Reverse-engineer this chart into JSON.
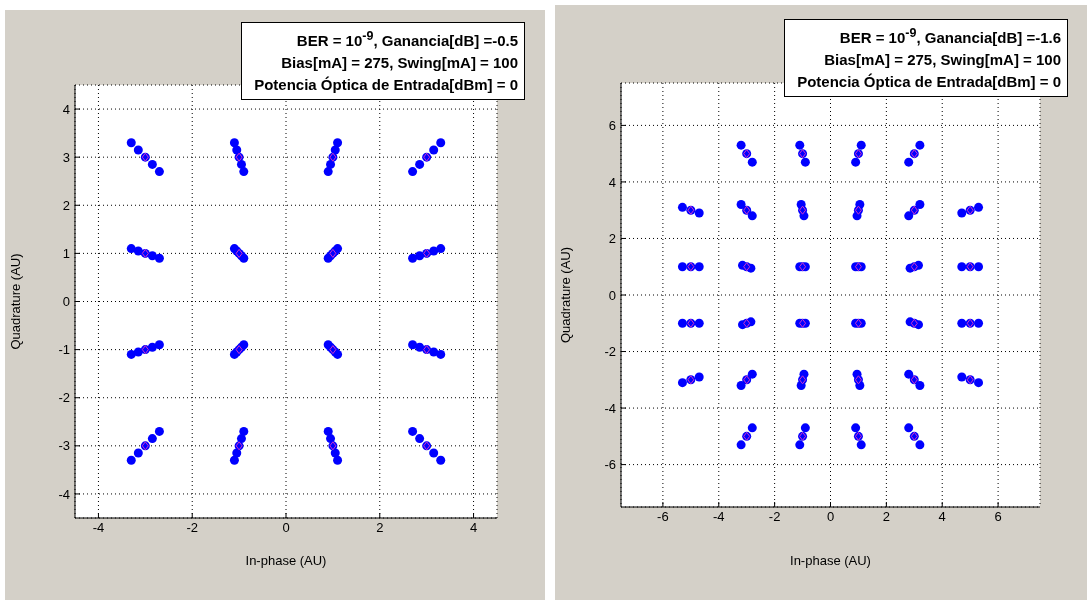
{
  "chart_data": [
    {
      "type": "scatter",
      "xlabel": "In-phase (AU)",
      "ylabel": "Quadrature (AU)",
      "annotations": [
        "BER = 10$^{-9}$, Ganancia[dB] =-0.5",
        "Bias[mA] = 275, Swing[mA] = 100",
        "Potencia Óptica de Entrada[dBm] =  0"
      ],
      "xlim": [
        -4.5,
        4.5
      ],
      "ylim": [
        -4.5,
        4.5
      ],
      "xticks": [
        -4,
        -2,
        0,
        2,
        4
      ],
      "yticks": [
        -4,
        -3,
        -2,
        -1,
        0,
        1,
        2,
        3,
        4
      ],
      "grid": true,
      "series": [
        {
          "color": "#0000ff",
          "marker": "circle",
          "x": [
            -3.3,
            -3.15,
            -3,
            -2.85,
            -2.7,
            -1.1,
            -1.05,
            -1,
            -0.95,
            -0.9,
            0.9,
            0.95,
            1,
            1.05,
            1.1,
            2.7,
            2.85,
            3,
            3.15,
            3.3,
            -3.3,
            -3.15,
            -3,
            -2.85,
            -2.7,
            -1.1,
            -1.05,
            -1,
            -0.95,
            -0.9,
            0.9,
            0.95,
            1,
            1.05,
            1.1,
            2.7,
            2.85,
            3,
            3.15,
            3.3,
            -3.3,
            -3.15,
            -3,
            -2.85,
            -2.7,
            -1.1,
            -1.05,
            -1,
            -0.95,
            -0.9,
            0.9,
            0.95,
            1,
            1.05,
            1.1,
            2.7,
            2.85,
            3,
            3.15,
            3.3,
            -3.3,
            -3.15,
            -3,
            -2.85,
            -2.7,
            -1.1,
            -1.05,
            -1,
            -0.95,
            -0.9,
            0.9,
            0.95,
            1,
            1.05,
            1.1,
            2.7,
            2.85,
            3,
            3.15,
            3.3
          ],
          "values": [
            3.3,
            3.15,
            3,
            2.85,
            2.7,
            3.3,
            3.15,
            3,
            2.85,
            2.7,
            2.7,
            2.85,
            3,
            3.15,
            3.3,
            2.7,
            2.85,
            3,
            3.15,
            3.3,
            1.1,
            1.05,
            1,
            0.95,
            0.9,
            1.1,
            1.05,
            1,
            0.95,
            0.9,
            0.9,
            0.95,
            1,
            1.05,
            1.1,
            0.9,
            0.95,
            1,
            1.05,
            1.1,
            -1.1,
            -1.05,
            -1,
            -0.95,
            -0.9,
            -1.1,
            -1.05,
            -1,
            -0.95,
            -0.9,
            -0.9,
            -0.95,
            -1,
            -1.05,
            -1.1,
            -0.9,
            -0.95,
            -1,
            -1.05,
            -1.1,
            -3.3,
            -3.15,
            -3,
            -2.85,
            -2.7,
            -3.3,
            -3.15,
            -3,
            -2.85,
            -2.7,
            -2.7,
            -2.85,
            -3,
            -3.15,
            -3.3,
            -2.7,
            -2.85,
            -3,
            -3.15,
            -3.3
          ]
        },
        {
          "color": "#cc33cc",
          "marker": "diamond",
          "x": [
            -3,
            -1,
            1,
            3,
            -3,
            -1,
            1,
            3,
            -3,
            -1,
            1,
            3,
            -3,
            -1,
            1,
            3
          ],
          "values": [
            3,
            3,
            3,
            3,
            1,
            1,
            1,
            1,
            -1,
            -1,
            -1,
            -1,
            -3,
            -3,
            -3,
            -3
          ]
        }
      ]
    },
    {
      "type": "scatter",
      "xlabel": "In-phase (AU)",
      "ylabel": "Quadrature (AU)",
      "annotations": [
        "BER = 10$^{-9}$, Ganancia[dB] =-1.6",
        "Bias[mA] = 275, Swing[mA] = 100",
        "Potencia Óptica de Entrada[dBm] =  0"
      ],
      "xlim": [
        -7.5,
        7.5
      ],
      "ylim": [
        -7.5,
        7.5
      ],
      "xticks": [
        -6,
        -4,
        -2,
        0,
        2,
        4,
        6
      ],
      "yticks": [
        -6,
        -4,
        -2,
        0,
        2,
        4,
        6
      ],
      "grid": true,
      "series": [
        {
          "color": "#0000ff",
          "marker": "circle",
          "x": [
            -3.2,
            -3,
            -2.8,
            -1.1,
            -1,
            -0.9,
            0.9,
            1,
            1.1,
            2.8,
            3,
            3.2,
            -5.3,
            -5,
            -4.7,
            -3.2,
            -3,
            -2.8,
            -1.05,
            -1,
            -0.95,
            0.95,
            1,
            1.05,
            2.8,
            3,
            3.2,
            4.7,
            5,
            5.3,
            -5.3,
            -5,
            -4.7,
            -3.15,
            -3,
            -2.85,
            -1.1,
            -1,
            -0.9,
            0.9,
            1,
            1.1,
            2.85,
            3,
            3.15,
            4.7,
            5,
            5.3,
            -5.3,
            -5,
            -4.7,
            -3.15,
            -3,
            -2.85,
            -1.1,
            -1,
            -0.9,
            0.9,
            1,
            1.1,
            2.85,
            3,
            3.15,
            4.7,
            5,
            5.3,
            -5.3,
            -5,
            -4.7,
            -3.2,
            -3,
            -2.8,
            -1.05,
            -1,
            -0.95,
            0.95,
            1,
            1.05,
            2.8,
            3,
            3.2,
            4.7,
            5,
            5.3,
            -3.2,
            -3,
            -2.8,
            -1.1,
            -1,
            -0.9,
            0.9,
            1,
            1.1,
            2.8,
            3,
            3.2
          ],
          "values": [
            5.3,
            5,
            4.7,
            5.3,
            5,
            4.7,
            4.7,
            5,
            5.3,
            4.7,
            5,
            5.3,
            3.1,
            3,
            2.9,
            3.2,
            3,
            2.8,
            3.2,
            3,
            2.8,
            2.8,
            3,
            3.2,
            2.8,
            3,
            3.2,
            2.9,
            3,
            3.1,
            1,
            1,
            1,
            1.05,
            1,
            0.95,
            1,
            1,
            1,
            1,
            1,
            1,
            0.95,
            1,
            1.05,
            1,
            1,
            1,
            -1,
            -1,
            -1,
            -1.05,
            -1,
            -0.95,
            -1,
            -1,
            -1,
            -1,
            -1,
            -1,
            -0.95,
            -1,
            -1.05,
            -1,
            -1,
            -1,
            -3.1,
            -3,
            -2.9,
            -3.2,
            -3,
            -2.8,
            -3.2,
            -3,
            -2.8,
            -2.8,
            -3,
            -3.2,
            -2.8,
            -3,
            -3.2,
            -2.9,
            -3,
            -3.1,
            -5.3,
            -5,
            -4.7,
            -5.3,
            -5,
            -4.7,
            -4.7,
            -5,
            -5.3,
            -4.7,
            -5,
            -5.3
          ]
        },
        {
          "color": "#cc33cc",
          "marker": "diamond",
          "x": [
            -3,
            -1,
            1,
            3,
            -5,
            -3,
            -1,
            1,
            3,
            5,
            -5,
            -3,
            -1,
            1,
            3,
            5,
            -5,
            -3,
            -1,
            1,
            3,
            5,
            -5,
            -3,
            -1,
            1,
            3,
            5,
            -3,
            -1,
            1,
            3
          ],
          "values": [
            5,
            5,
            5,
            5,
            3,
            3,
            3,
            3,
            3,
            3,
            1,
            1,
            1,
            1,
            1,
            1,
            -1,
            -1,
            -1,
            -1,
            -1,
            -1,
            -3,
            -3,
            -3,
            -3,
            -3,
            -3,
            -5,
            -5,
            -5,
            -5
          ]
        }
      ]
    }
  ]
}
